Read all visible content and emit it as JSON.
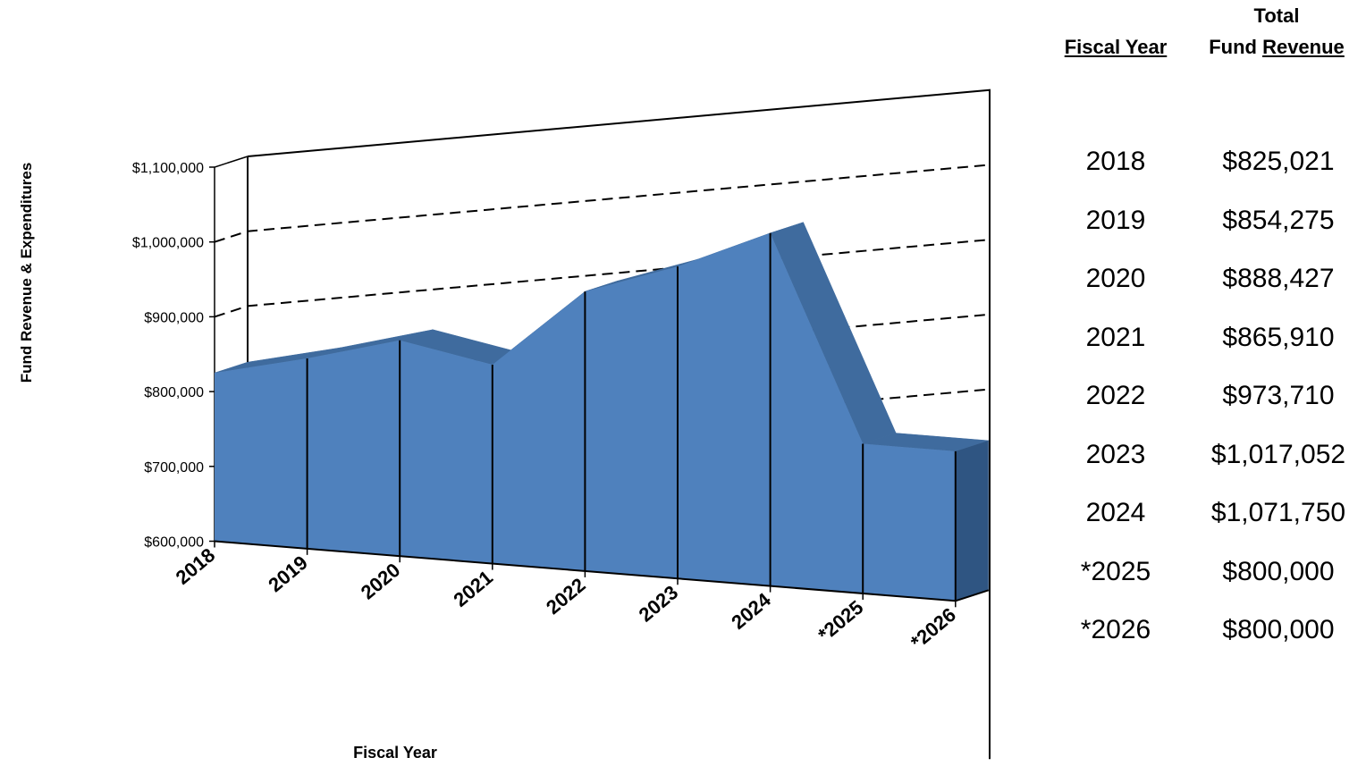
{
  "chart_data": {
    "type": "area",
    "categories": [
      "2018",
      "2019",
      "2020",
      "2021",
      "2022",
      "2023",
      "2024",
      "*2025",
      "*2026"
    ],
    "values": [
      825021,
      854275,
      888427,
      865910,
      973710,
      1017052,
      1071750,
      800000,
      800000
    ],
    "ylabel": "Fund Revenue & Expenditures",
    "xlabel": "Fiscal Year",
    "ylim": [
      600000,
      1100000
    ],
    "yticks": [
      "$1,100,000",
      "$1,000,000",
      "$900,000",
      "$800,000",
      "$700,000",
      "$600,000"
    ],
    "grid": true,
    "colors": {
      "front": "#4f81bd",
      "top": "#3f6b9e",
      "side": "#2f5582"
    }
  },
  "table": {
    "header_fiscal_year": "Fiscal Year",
    "header_total": "Total",
    "header_fund": "Fund",
    "header_revenue": "Revenue",
    "rows": [
      {
        "year": "2018",
        "revenue": "$825,021"
      },
      {
        "year": "2019",
        "revenue": "$854,275"
      },
      {
        "year": "2020",
        "revenue": "$888,427"
      },
      {
        "year": "2021",
        "revenue": "$865,910"
      },
      {
        "year": "2022",
        "revenue": "$973,710"
      },
      {
        "year": "2023",
        "revenue": "$1,017,052"
      },
      {
        "year": "2024",
        "revenue": "$1,071,750"
      },
      {
        "year": "*2025",
        "revenue": "$800,000"
      },
      {
        "year": "*2026",
        "revenue": "$800,000"
      }
    ]
  }
}
